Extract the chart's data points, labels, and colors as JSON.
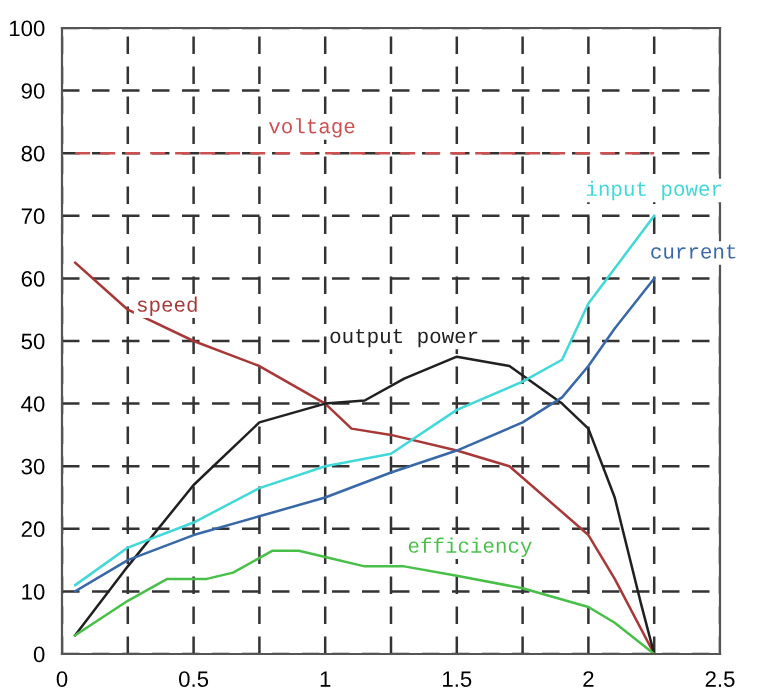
{
  "chart_data": {
    "type": "line",
    "xlim": [
      0,
      2.5
    ],
    "ylim": [
      0,
      100
    ],
    "xticks": [
      0,
      {
        "value": 0.25,
        "label": null
      },
      0.5,
      {
        "value": 0.75,
        "label": null
      },
      1,
      {
        "value": 1.25,
        "label": null
      },
      1.5,
      {
        "value": 1.75,
        "label": null
      },
      2,
      {
        "value": 2.25,
        "label": null
      },
      2.5
    ],
    "yticks": [
      0,
      10,
      20,
      30,
      40,
      50,
      60,
      70,
      80,
      90,
      100
    ],
    "grid": true,
    "marker": "none",
    "legend": false,
    "series": [
      {
        "name": "voltage",
        "color": "#cc5050",
        "line_style": "dashed",
        "x": [
          0.05,
          2.25
        ],
        "values": [
          80,
          80
        ]
      },
      {
        "name": "speed",
        "color": "#a83838",
        "x": [
          0.05,
          0.25,
          0.5,
          0.75,
          1.0,
          1.1,
          1.25,
          1.5,
          1.7,
          2.0,
          2.1,
          2.25
        ],
        "values": [
          62.5,
          55,
          50,
          46,
          40,
          36,
          35,
          32.5,
          30,
          19,
          12,
          0
        ]
      },
      {
        "name": "output power",
        "color": "#202020",
        "x": [
          0.05,
          0.25,
          0.5,
          0.75,
          1.0,
          1.15,
          1.3,
          1.5,
          1.7,
          1.9,
          2.0,
          2.1,
          2.2,
          2.25
        ],
        "values": [
          3,
          14,
          27,
          37,
          40,
          40.5,
          44,
          47.5,
          46,
          40,
          36,
          25,
          8,
          0
        ]
      },
      {
        "name": "input power",
        "color": "#40d8d8",
        "x": [
          0.05,
          0.25,
          0.5,
          0.75,
          1.0,
          1.25,
          1.5,
          1.75,
          1.9,
          2.0,
          2.25
        ],
        "values": [
          11,
          17,
          21,
          26.5,
          30,
          32,
          39,
          43.5,
          47,
          56,
          70
        ]
      },
      {
        "name": "current",
        "color": "#3868a8",
        "x": [
          0.05,
          0.25,
          0.5,
          0.75,
          1.0,
          1.25,
          1.5,
          1.75,
          1.9,
          2.0,
          2.1,
          2.25
        ],
        "values": [
          10,
          15,
          19,
          22,
          25,
          29,
          32.5,
          37,
          41,
          46,
          52,
          60
        ]
      },
      {
        "name": "efficiency",
        "color": "#48c048",
        "x": [
          0.05,
          0.25,
          0.4,
          0.55,
          0.65,
          0.8,
          0.9,
          1.0,
          1.15,
          1.3,
          1.5,
          1.75,
          2.0,
          2.1,
          2.25
        ],
        "values": [
          3,
          8.5,
          12,
          12,
          13,
          16.5,
          16.5,
          15.5,
          14,
          14,
          12.5,
          10.5,
          7.5,
          5,
          0
        ]
      }
    ]
  }
}
